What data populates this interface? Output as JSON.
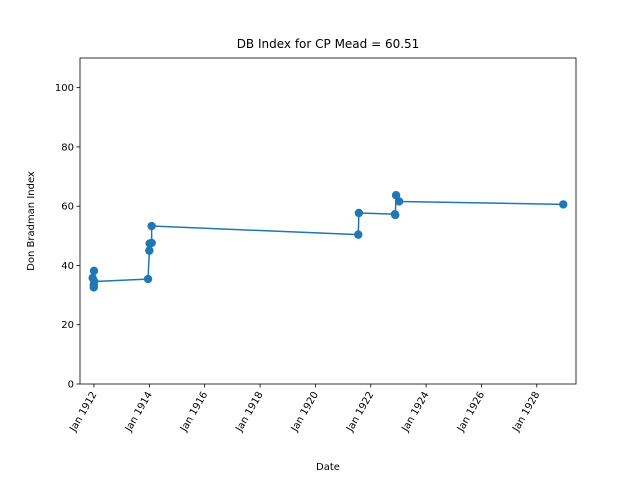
{
  "chart_data": {
    "type": "line",
    "title": "DB Index for CP Mead = 60.51",
    "xlabel": "Date",
    "ylabel": "Don Bradman Index",
    "ylim": [
      0,
      110
    ],
    "xlim": [
      "1911-07-01",
      "1929-06-01"
    ],
    "grid": false,
    "marker": "circle",
    "color": "#1f77b4",
    "yticks": [
      0,
      20,
      40,
      60,
      80,
      100
    ],
    "xticks": [
      {
        "date": "1912-01-01",
        "label": "Jan 1912"
      },
      {
        "date": "1914-01-01",
        "label": "Jan 1914"
      },
      {
        "date": "1916-01-01",
        "label": "Jan 1916"
      },
      {
        "date": "1918-01-01",
        "label": "Jan 1918"
      },
      {
        "date": "1920-01-01",
        "label": "Jan 1920"
      },
      {
        "date": "1922-01-01",
        "label": "Jan 1922"
      },
      {
        "date": "1924-01-01",
        "label": "Jan 1924"
      },
      {
        "date": "1926-01-01",
        "label": "Jan 1926"
      },
      {
        "date": "1928-01-01",
        "label": "Jan 1928"
      }
    ],
    "series": [
      {
        "x": [
          "1911-12-15",
          "1911-12-30",
          "1912-01-02",
          "1911-12-30",
          "1912-01-05",
          "1913-12-15",
          "1914-01-01",
          "1914-01-05",
          "1914-02-01",
          "1914-01-31",
          "1921-07-20",
          "1921-07-28",
          "1922-11-15",
          "1922-11-20",
          "1922-12-01",
          "1923-01-10",
          "1928-12-15"
        ],
        "y": [
          35.8,
          32.6,
          38.2,
          33.5,
          34.6,
          35.4,
          45.0,
          47.4,
          47.6,
          53.3,
          50.4,
          57.7,
          57.3,
          57.0,
          63.7,
          61.6,
          60.6
        ]
      }
    ]
  }
}
